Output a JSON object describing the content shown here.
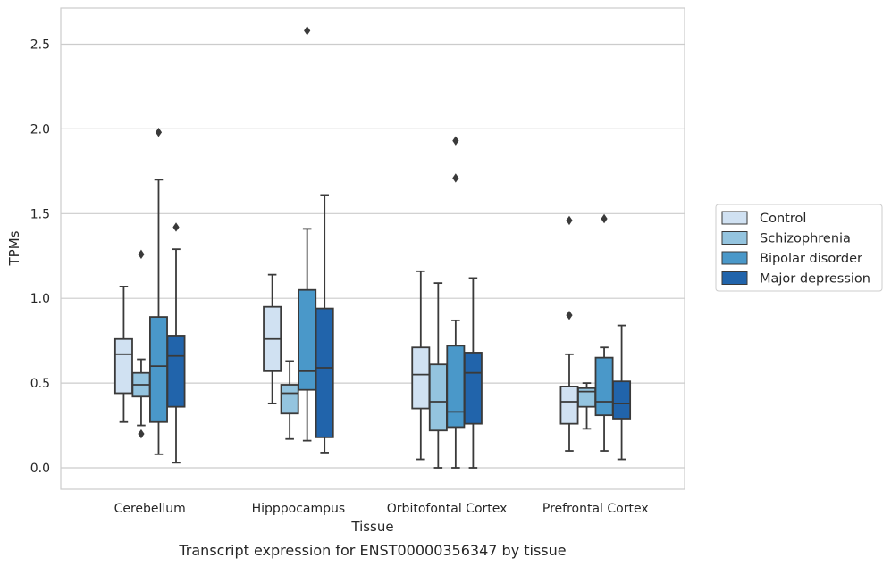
{
  "chart_data": {
    "type": "box",
    "caption": "Transcript expression for ENST00000356347 by tissue",
    "xlabel": "Tissue",
    "ylabel": "TPMs",
    "ylim": [
      -0.13,
      2.72
    ],
    "yticks": [
      "0.0",
      "0.5",
      "1.0",
      "1.5",
      "2.0",
      "2.5"
    ],
    "ytick_values": [
      0.0,
      0.5,
      1.0,
      1.5,
      2.0,
      2.5
    ],
    "grid": "horizontal",
    "legend_position": "right",
    "categories": [
      "Cerebellum",
      "Hipppocampus",
      "Orbitofontal Cortex",
      "Prefrontal Cortex"
    ],
    "series": [
      {
        "name": "Control",
        "color": "#d0e1f2",
        "boxes": [
          {
            "whislo": 0.27,
            "q1": 0.44,
            "med": 0.67,
            "q3": 0.76,
            "whishi": 1.07,
            "fliers": []
          },
          {
            "whislo": 0.38,
            "q1": 0.57,
            "med": 0.76,
            "q3": 0.95,
            "whishi": 1.14,
            "fliers": []
          },
          {
            "whislo": 0.05,
            "q1": 0.35,
            "med": 0.55,
            "q3": 0.71,
            "whishi": 1.16,
            "fliers": []
          },
          {
            "whislo": 0.1,
            "q1": 0.26,
            "med": 0.39,
            "q3": 0.48,
            "whishi": 0.67,
            "fliers": [
              0.9,
              1.46
            ]
          }
        ]
      },
      {
        "name": "Schizophrenia",
        "color": "#94c4df",
        "boxes": [
          {
            "whislo": 0.25,
            "q1": 0.42,
            "med": 0.49,
            "q3": 0.56,
            "whishi": 0.64,
            "fliers": [
              0.2,
              1.26
            ]
          },
          {
            "whislo": 0.17,
            "q1": 0.32,
            "med": 0.44,
            "q3": 0.49,
            "whishi": 0.63,
            "fliers": []
          },
          {
            "whislo": 0.0,
            "q1": 0.22,
            "med": 0.39,
            "q3": 0.61,
            "whishi": 1.09,
            "fliers": []
          },
          {
            "whislo": 0.23,
            "q1": 0.36,
            "med": 0.45,
            "q3": 0.47,
            "whishi": 0.5,
            "fliers": []
          }
        ]
      },
      {
        "name": "Bipolar disorder",
        "color": "#4a98c9",
        "boxes": [
          {
            "whislo": 0.08,
            "q1": 0.27,
            "med": 0.6,
            "q3": 0.89,
            "whishi": 1.7,
            "fliers": [
              1.98
            ]
          },
          {
            "whislo": 0.16,
            "q1": 0.46,
            "med": 0.57,
            "q3": 1.05,
            "whishi": 1.41,
            "fliers": [
              2.58
            ]
          },
          {
            "whislo": 0.0,
            "q1": 0.24,
            "med": 0.33,
            "q3": 0.72,
            "whishi": 0.87,
            "fliers": [
              1.71,
              1.93
            ]
          },
          {
            "whislo": 0.1,
            "q1": 0.31,
            "med": 0.39,
            "q3": 0.65,
            "whishi": 0.71,
            "fliers": [
              1.47
            ]
          }
        ]
      },
      {
        "name": "Major depression",
        "color": "#2164ab",
        "boxes": [
          {
            "whislo": 0.03,
            "q1": 0.36,
            "med": 0.66,
            "q3": 0.78,
            "whishi": 1.29,
            "fliers": [
              1.42
            ]
          },
          {
            "whislo": 0.09,
            "q1": 0.18,
            "med": 0.59,
            "q3": 0.94,
            "whishi": 1.61,
            "fliers": []
          },
          {
            "whislo": 0.0,
            "q1": 0.26,
            "med": 0.56,
            "q3": 0.68,
            "whishi": 1.12,
            "fliers": []
          },
          {
            "whislo": 0.05,
            "q1": 0.29,
            "med": 0.38,
            "q3": 0.51,
            "whishi": 0.84,
            "fliers": []
          }
        ]
      }
    ]
  }
}
